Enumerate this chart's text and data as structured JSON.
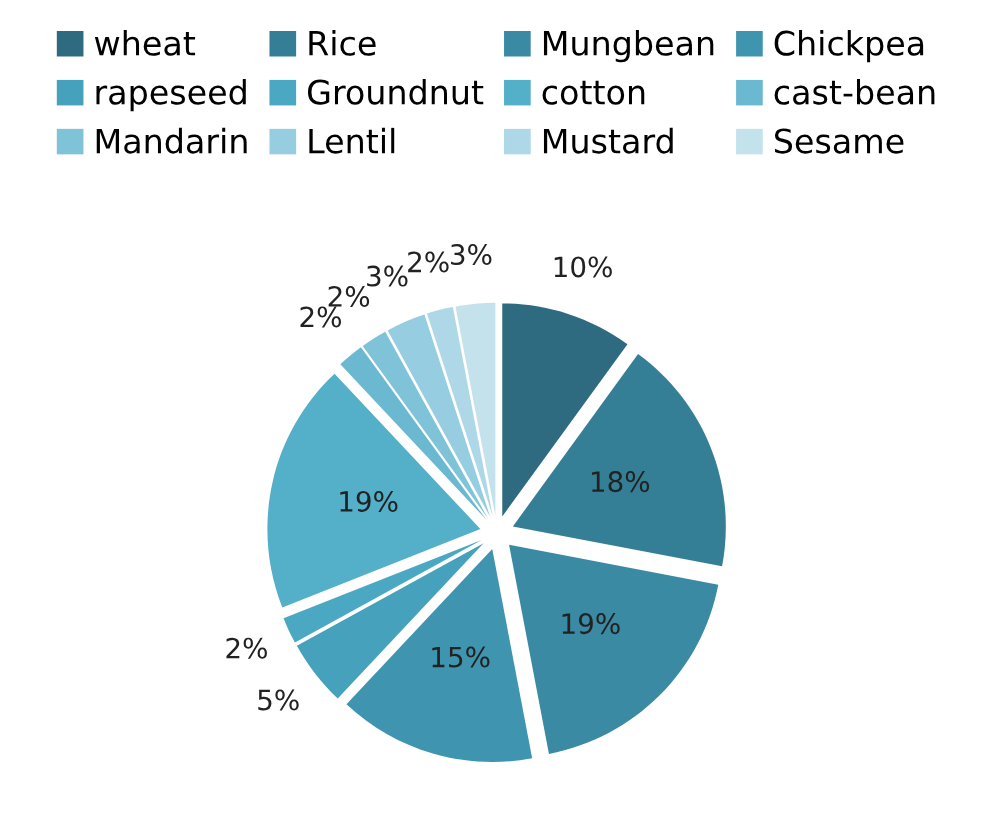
{
  "chart_data": {
    "type": "pie",
    "categories": [
      "wheat",
      "Rice",
      "Mungbean",
      "Chickpea",
      "rapeseed",
      "Groundnut",
      "cotton",
      "cast-bean",
      "Mandarin",
      "Lentil",
      "Mustard",
      "Sesame"
    ],
    "values": [
      10,
      18,
      19,
      15,
      5,
      2,
      19,
      2,
      2,
      3,
      2,
      3
    ],
    "colors": [
      "#2f6b80",
      "#357f96",
      "#3a8aa3",
      "#3f95b0",
      "#45a1bc",
      "#4aa8c2",
      "#54afc9",
      "#6ab9d1",
      "#7fc3d8",
      "#96cde0",
      "#aed8e7",
      "#c4e2ec"
    ],
    "value_labels": [
      "10%",
      "18%",
      "19%",
      "15%",
      "5%",
      "2%",
      "19%",
      "2%",
      "2%",
      "3%",
      "2%",
      "3%"
    ],
    "legend": "top"
  }
}
